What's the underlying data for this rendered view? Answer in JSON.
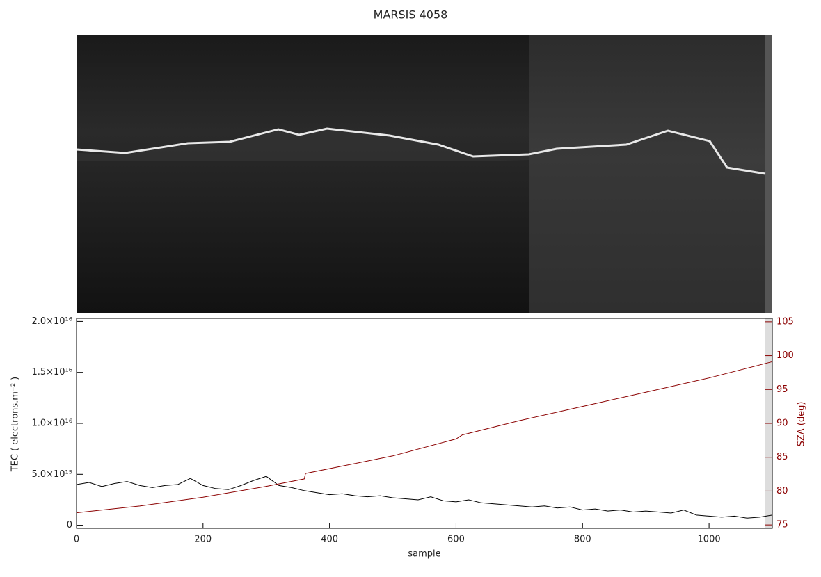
{
  "chart_data": {
    "type": "line",
    "title": "MARSIS 4058",
    "xlabel": "sample",
    "ylabel": "TEC ( electrons.m⁻² )",
    "y2label": "SZA (deg)",
    "xlim": [
      0,
      1100
    ],
    "xticks": [
      0,
      200,
      400,
      600,
      800,
      1000
    ],
    "ylim": [
      -300000000000000.0,
      2.03e+16
    ],
    "yticks": [
      0,
      {
        "value": 5000000000000000.0,
        "label": "5.0×10¹⁵"
      },
      {
        "value": 1e+16,
        "label": "1.0×10¹⁶"
      },
      {
        "value": 1.5e+16,
        "label": "1.5×10¹⁶"
      },
      {
        "value": 2e+16,
        "label": "2.0×10¹⁶"
      }
    ],
    "y2lim": [
      74.5,
      105.5
    ],
    "y2ticks": [
      75,
      80,
      85,
      90,
      95,
      100,
      105
    ],
    "y2color": "#8b0000",
    "series": [
      {
        "color": "#000000",
        "x": [
          0,
          20,
          40,
          60,
          80,
          100,
          120,
          140,
          160,
          180,
          200,
          220,
          240,
          260,
          280,
          300,
          320,
          340,
          360,
          380,
          400,
          420,
          440,
          460,
          480,
          500,
          520,
          540,
          560,
          580,
          600,
          620,
          640,
          660,
          680,
          700,
          720,
          740,
          760,
          780,
          800,
          820,
          840,
          860,
          880,
          900,
          920,
          940,
          960,
          980,
          1000,
          1020,
          1040,
          1060,
          1080,
          1100
        ],
        "values": [
          4000000000000000.0,
          4200000000000000.0,
          3800000000000000.0,
          4100000000000000.0,
          4300000000000000.0,
          3900000000000000.0,
          3700000000000000.0,
          3900000000000000.0,
          4000000000000000.0,
          4600000000000000.0,
          3900000000000000.0,
          3600000000000000.0,
          3500000000000000.0,
          3900000000000000.0,
          4400000000000000.0,
          4800000000000000.0,
          3900000000000000.0,
          3700000000000000.0,
          3400000000000000.0,
          3200000000000000.0,
          3000000000000000.0,
          3100000000000000.0,
          2900000000000000.0,
          2800000000000000.0,
          2900000000000000.0,
          2700000000000000.0,
          2600000000000000.0,
          2500000000000000.0,
          2800000000000000.0,
          2400000000000000.0,
          2300000000000000.0,
          2500000000000000.0,
          2200000000000000.0,
          2100000000000000.0,
          2000000000000000.0,
          1900000000000000.0,
          1800000000000000.0,
          1900000000000000.0,
          1700000000000000.0,
          1800000000000000.0,
          1500000000000000.0,
          1600000000000000.0,
          1400000000000000.0,
          1500000000000000.0,
          1300000000000000.0,
          1400000000000000.0,
          1300000000000000.0,
          1200000000000000.0,
          1500000000000000.0,
          1000000000000000.0,
          900000000000000.0,
          800000000000000.0,
          900000000000000.0,
          700000000000000.0,
          800000000000000.0,
          1000000000000000.0
        ]
      },
      {
        "color": "#8b0000",
        "axis": "y2",
        "x": [
          0,
          100,
          200,
          300,
          360,
          362,
          500,
          600,
          610,
          700,
          800,
          900,
          1000,
          1100
        ],
        "values": [
          76.8,
          77.8,
          79.1,
          80.7,
          81.8,
          82.6,
          85.2,
          87.7,
          88.3,
          90.4,
          92.5,
          94.6,
          96.7,
          99.1
        ]
      }
    ]
  }
}
